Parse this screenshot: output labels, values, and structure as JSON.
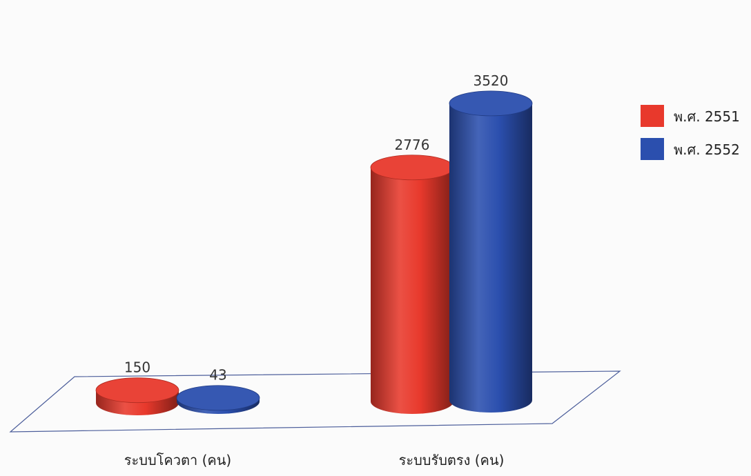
{
  "chart_data": {
    "type": "bar",
    "style": "3d-cylinder",
    "categories": [
      "ระบบโควตา (คน)",
      "ระบบรับตรง (คน)"
    ],
    "series": [
      {
        "name": "พ.ศ. 2551",
        "values": [
          150,
          2776
        ],
        "color": "#e8392c"
      },
      {
        "name": "พ.ศ. 2552",
        "values": [
          43,
          3520
        ],
        "color": "#2b4fae"
      }
    ],
    "data_labels": true,
    "legend": "right",
    "grid": false
  }
}
